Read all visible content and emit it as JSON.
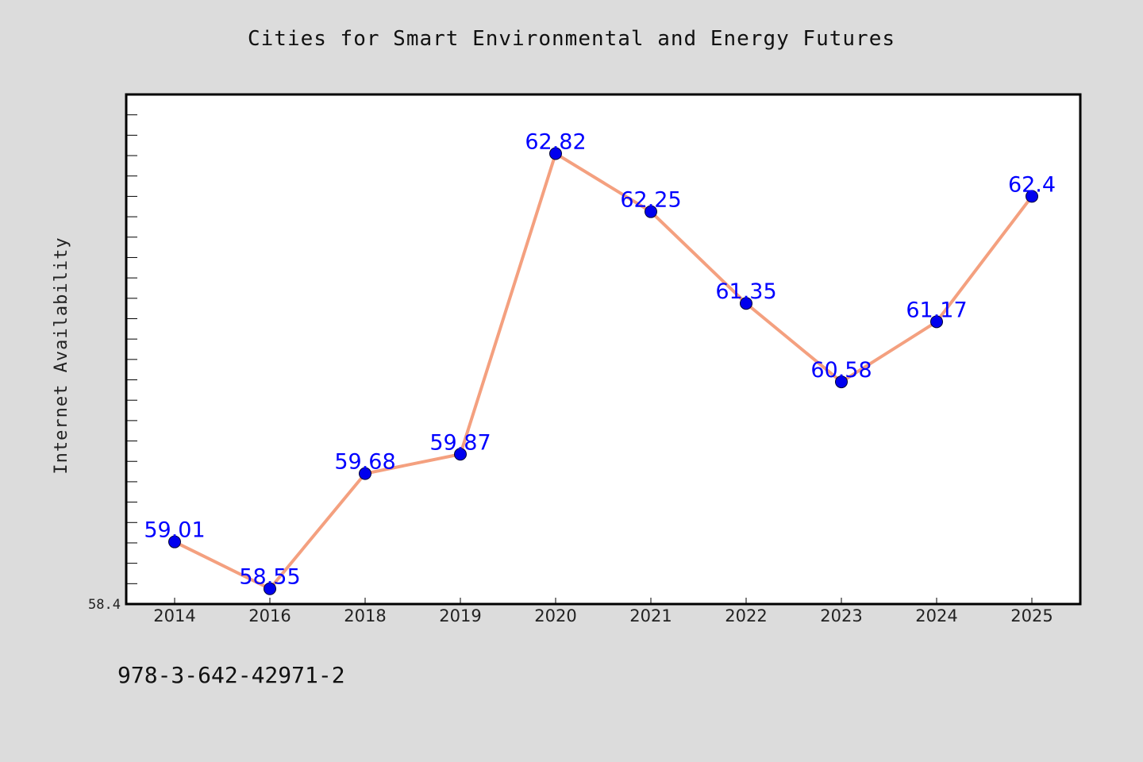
{
  "chart_data": {
    "type": "line",
    "title": "Cities for Smart Environmental and Energy Futures",
    "xlabel": "",
    "ylabel": "Internet Availability",
    "categories": [
      "2014",
      "2016",
      "2018",
      "2019",
      "2020",
      "2021",
      "2022",
      "2023",
      "2024",
      "2025"
    ],
    "values": [
      59.01,
      58.55,
      59.68,
      59.87,
      62.82,
      62.25,
      61.35,
      60.58,
      61.17,
      62.4
    ],
    "data_labels": [
      "59.01",
      "58.55",
      "59.68",
      "59.87",
      "62.82",
      "62.25",
      "61.35",
      "60.58",
      "61.17",
      "62.4"
    ],
    "y_tick_labels": [
      "58.4"
    ],
    "ylim": [
      58.4,
      63.4
    ],
    "grid": false,
    "colors": {
      "line": "#f4a07f",
      "marker": "#0000ee",
      "data_label": "#0000ff",
      "plot_background": "#ffffff",
      "figure_background": "#dcdcdc"
    }
  },
  "footer_code": "978-3-642-42971-2"
}
